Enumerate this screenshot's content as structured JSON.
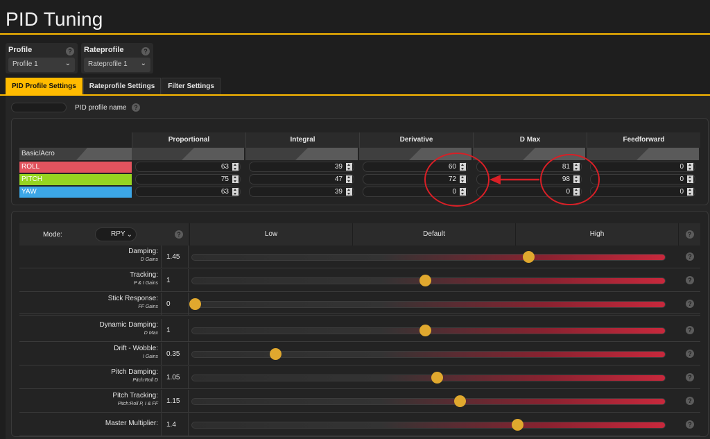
{
  "title": "PID Tuning",
  "profile": {
    "label": "Profile",
    "value": "Profile 1"
  },
  "rateprofile": {
    "label": "Rateprofile",
    "value": "Rateprofile 1"
  },
  "help_glyph": "?",
  "tabs": [
    {
      "label": "PID Profile Settings",
      "active": true
    },
    {
      "label": "Rateprofile Settings",
      "active": false
    },
    {
      "label": "Filter Settings",
      "active": false
    }
  ],
  "pid_profile_name": {
    "label": "PID profile name",
    "value": ""
  },
  "pid_table": {
    "columns": [
      "Proportional",
      "Integral",
      "Derivative",
      "D Max",
      "Feedforward"
    ],
    "group_label": "Basic/Acro",
    "rows": [
      {
        "axis": "ROLL",
        "color": "#e2535e",
        "values": [
          "63",
          "39",
          "60",
          "81",
          "0"
        ]
      },
      {
        "axis": "PITCH",
        "color": "#96d420",
        "values": [
          "75",
          "47",
          "72",
          "98",
          "0"
        ]
      },
      {
        "axis": "YAW",
        "color": "#3ca6e6",
        "values": [
          "63",
          "39",
          "0",
          "0",
          "0"
        ]
      }
    ]
  },
  "sliders": {
    "mode_label": "Mode:",
    "mode_value": "RPY",
    "headers": [
      "Low",
      "Default",
      "High"
    ],
    "range": [
      0,
      2.0
    ],
    "rows": [
      {
        "label": "Damping:",
        "sub": "D Gains",
        "value": "1.45",
        "level": 1.45
      },
      {
        "label": "Tracking:",
        "sub": "P & I Gains",
        "value": "1",
        "level": 1.0
      },
      {
        "label": "Stick Response:",
        "sub": "FF Gains",
        "value": "0",
        "level": 0.0
      },
      {
        "label": "Dynamic Damping:",
        "sub": "D Max",
        "value": "1",
        "level": 1.0
      },
      {
        "label": "Drift - Wobble:",
        "sub": "I Gains",
        "value": "0.35",
        "level": 0.35
      },
      {
        "label": "Pitch Damping:",
        "sub": "Pitch:Roll D",
        "value": "1.05",
        "level": 1.05
      },
      {
        "label": "Pitch Tracking:",
        "sub": "Pitch:Roll P, I & FF",
        "value": "1.15",
        "level": 1.15
      },
      {
        "label": "Master Multiplier:",
        "sub": "",
        "value": "1.4",
        "level": 1.4
      }
    ]
  },
  "colors": {
    "accent": "#ffbb00",
    "thumb": "#e0a82e",
    "annotation": "#d81f26"
  }
}
